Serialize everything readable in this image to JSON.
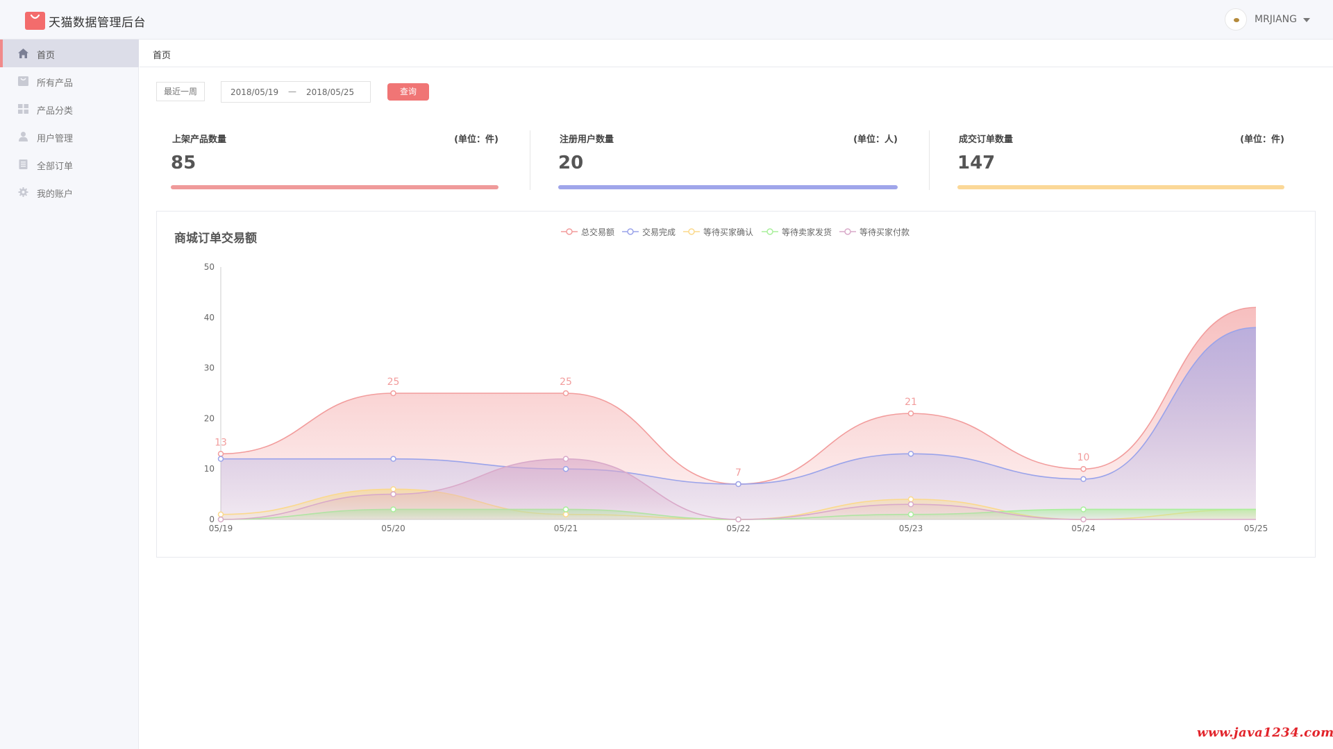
{
  "header": {
    "app_title": "天猫数据管理后台",
    "logo_icon": "shopping-bag-icon",
    "brand_color": "#f36c6c",
    "username": "MRJIANG"
  },
  "sidebar": {
    "items": [
      {
        "label": "首页",
        "icon": "home-icon",
        "active": true
      },
      {
        "label": "所有产品",
        "icon": "product-icon",
        "active": false
      },
      {
        "label": "产品分类",
        "icon": "category-grid-icon",
        "active": false
      },
      {
        "label": "用户管理",
        "icon": "user-icon",
        "active": false
      },
      {
        "label": "全部订单",
        "icon": "order-list-icon",
        "active": false
      },
      {
        "label": "我的账户",
        "icon": "gear-icon",
        "active": false
      }
    ]
  },
  "breadcrumb": "首页",
  "filter": {
    "range_label": "最近一周",
    "date_start": "2018/05/19",
    "date_separator": "—",
    "date_end": "2018/05/25",
    "query_label": "查询"
  },
  "stats": [
    {
      "title": "上架产品数量",
      "unit": "(单位：件)",
      "value": "85",
      "color": "#ef9a9a"
    },
    {
      "title": "注册用户数量",
      "unit": "(单位：人)",
      "value": "20",
      "color": "#9fa5ea"
    },
    {
      "title": "成交订单数量",
      "unit": "(单位：件)",
      "value": "147",
      "color": "#fbd898"
    }
  ],
  "chart_data": {
    "type": "area",
    "title": "商城订单交易额",
    "legend_position": "top-center",
    "x": [
      "05/19",
      "05/20",
      "05/21",
      "05/22",
      "05/23",
      "05/24",
      "05/25"
    ],
    "ylim": [
      0,
      50
    ],
    "yticks": [
      0,
      10,
      20,
      30,
      40,
      50
    ],
    "grid": false,
    "series": [
      {
        "name": "总交易额",
        "color": "#f29c9c",
        "values": [
          13,
          25,
          25,
          7,
          21,
          10,
          42
        ],
        "show_labels": true,
        "point_labels": [
          "13",
          "25",
          "25",
          "7",
          "21",
          "10",
          ""
        ]
      },
      {
        "name": "交易完成",
        "color": "#9aa3ea",
        "values": [
          12,
          12,
          10,
          7,
          13,
          8,
          38
        ]
      },
      {
        "name": "等待买家确认",
        "color": "#fbd98c",
        "values": [
          1,
          6,
          1,
          0,
          4,
          0,
          2
        ]
      },
      {
        "name": "等待卖家发货",
        "color": "#a9ef9c",
        "values": [
          0,
          2,
          2,
          0,
          1,
          2,
          2
        ]
      },
      {
        "name": "等待买家付款",
        "color": "#d9a9c9",
        "values": [
          0,
          5,
          12,
          0,
          3,
          0,
          0
        ]
      }
    ]
  },
  "watermark": "www.java1234.com"
}
